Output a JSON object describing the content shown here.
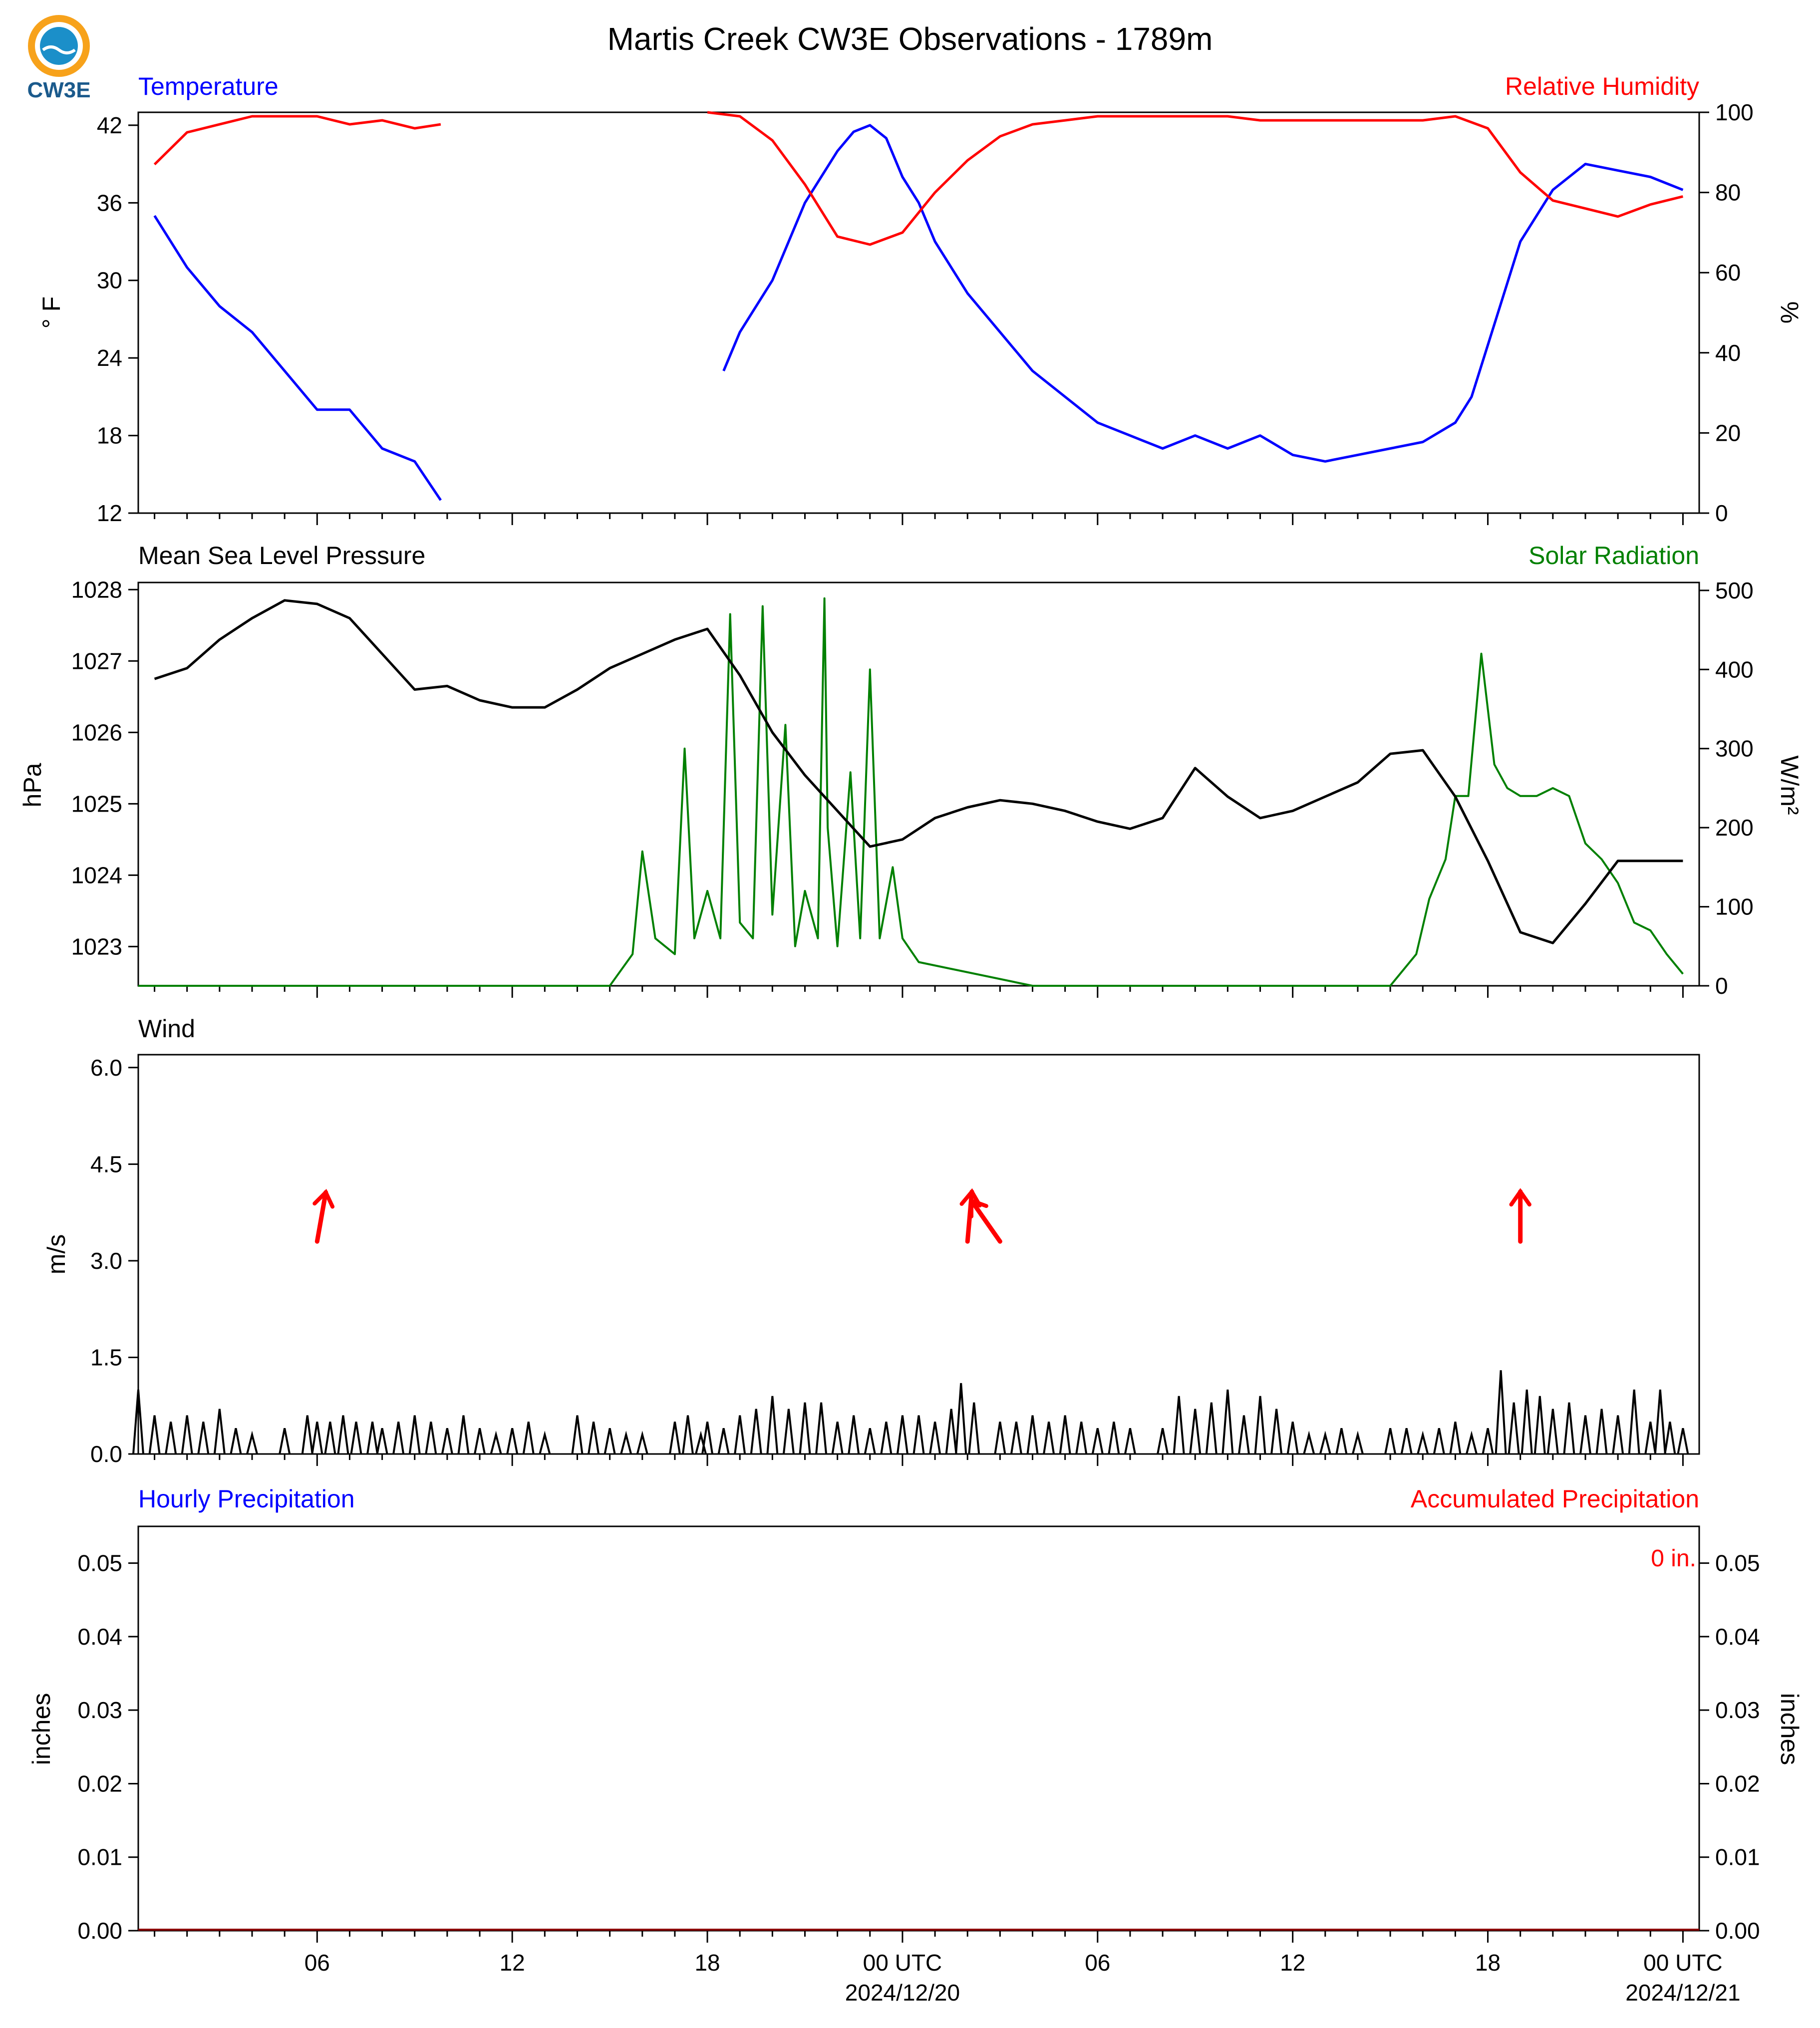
{
  "title": "Martis Creek CW3E Observations - 1789m",
  "logo": {
    "text": "CW3E",
    "colors": {
      "orange": "#F7A21B",
      "blue": "#1B8FC9",
      "navy": "#1B5A8C"
    }
  },
  "x_axis": {
    "range_hours": [
      -47.5,
      0.5
    ],
    "ticks": [
      {
        "hour": -42,
        "label": "06"
      },
      {
        "hour": -36,
        "label": "12"
      },
      {
        "hour": -30,
        "label": "18"
      },
      {
        "hour": -24,
        "label": "00 UTC",
        "sublabel": "2024/12/20"
      },
      {
        "hour": -18,
        "label": "06"
      },
      {
        "hour": -12,
        "label": "12"
      },
      {
        "hour": -6,
        "label": "18"
      },
      {
        "hour": 0,
        "label": "00 UTC",
        "sublabel": "2024/12/21"
      }
    ]
  },
  "panels": {
    "temp": {
      "title_left": "Temperature",
      "title_right": "Relative Humidity",
      "ylabel_left": "° F",
      "ylabel_right": "%",
      "yticks_left": [
        "12",
        "18",
        "24",
        "30",
        "36",
        "42"
      ],
      "yticks_right": [
        "0",
        "20",
        "40",
        "60",
        "80",
        "100"
      ]
    },
    "pressure": {
      "title_left": "Mean Sea Level Pressure",
      "title_right": "Solar Radiation",
      "ylabel_left": "hPa",
      "ylabel_right": "W/m²",
      "yticks_left": [
        "1023",
        "1024",
        "1025",
        "1026",
        "1027",
        "1028"
      ],
      "yticks_right": [
        "0",
        "100",
        "200",
        "300",
        "400",
        "500"
      ]
    },
    "wind": {
      "title_left": "Wind",
      "ylabel_left": "m/s",
      "yticks_left": [
        "0.0",
        "1.5",
        "3.0",
        "4.5",
        "6.0"
      ]
    },
    "precip": {
      "title_left": "Hourly Precipitation",
      "title_right": "Accumulated Precipitation",
      "ylabel_left": "inches",
      "ylabel_right": "inches",
      "yticks_left": [
        "0.00",
        "0.01",
        "0.02",
        "0.03",
        "0.04",
        "0.05"
      ],
      "yticks_right": [
        "0.00",
        "0.01",
        "0.02",
        "0.03",
        "0.04",
        "0.05"
      ],
      "accum_label": "0 in."
    }
  },
  "colors": {
    "temperature": "#0000FF",
    "humidity": "#FF0000",
    "pressure": "#000000",
    "solar": "#008000",
    "wind": "#000000",
    "wind_arrows": "#FF0000"
  },
  "chart_data": [
    {
      "type": "line",
      "name": "temperature",
      "x_unit": "hours relative to 2024/12/21 00 UTC",
      "y_unit": "°F",
      "ylim": [
        12,
        43
      ],
      "series": [
        {
          "name": "Temperature",
          "segments": [
            {
              "x": [
                -47,
                -46,
                -45,
                -44,
                -43,
                -42,
                -41,
                -40,
                -39,
                -38.2
              ],
              "y": [
                35,
                31,
                28,
                26,
                23,
                20,
                20,
                17,
                16,
                13
              ]
            },
            {
              "x": [
                -29.5,
                -29,
                -28,
                -27,
                -26,
                -25.5,
                -25,
                -24.5,
                -24,
                -23.5,
                -23,
                -22,
                -21,
                -20,
                -19,
                -18,
                -17,
                -16,
                -15,
                -14,
                -13,
                -12,
                -11,
                -10,
                -9,
                -8,
                -7,
                -6.5,
                -6,
                -5,
                -4,
                -3,
                -2,
                -1,
                -0.5,
                0
              ],
              "y": [
                23,
                26,
                30,
                36,
                40,
                41.5,
                42,
                41,
                38,
                36,
                33,
                29,
                26,
                23,
                21,
                19,
                18,
                17,
                18,
                17,
                18,
                16.5,
                16,
                16.5,
                17,
                17.5,
                19,
                21,
                25,
                33,
                37,
                39,
                38.5,
                38,
                37.5,
                37
              ]
            }
          ]
        }
      ]
    },
    {
      "type": "line",
      "name": "relative_humidity",
      "x_unit": "hours relative to 2024/12/21 00 UTC",
      "y_unit": "%",
      "ylim": [
        0,
        100
      ],
      "series": [
        {
          "name": "Relative Humidity",
          "segments": [
            {
              "x": [
                -47,
                -46,
                -45,
                -44,
                -43,
                -42,
                -41,
                -40,
                -39,
                -38.2
              ],
              "y": [
                87,
                95,
                97,
                99,
                99,
                99,
                97,
                98,
                96,
                97
              ]
            },
            {
              "x": [
                -30,
                -29,
                -28,
                -27,
                -26,
                -25,
                -24,
                -23,
                -22,
                -21,
                -20,
                -19,
                -18,
                -17,
                -16,
                -15,
                -14,
                -13,
                -12,
                -11,
                -10,
                -9,
                -8,
                -7,
                -6,
                -5,
                -4,
                -3,
                -2,
                -1,
                0
              ],
              "y": [
                100,
                99,
                93,
                82,
                69,
                67,
                70,
                80,
                88,
                94,
                97,
                98,
                99,
                99,
                99,
                99,
                99,
                98,
                98,
                98,
                98,
                98,
                98,
                99,
                96,
                85,
                78,
                76,
                74,
                77,
                79
              ]
            }
          ]
        }
      ]
    },
    {
      "type": "line",
      "name": "mean_sea_level_pressure",
      "x_unit": "hours relative to 2024/12/21 00 UTC",
      "y_unit": "hPa",
      "ylim": [
        1022.45,
        1028.1
      ],
      "series": [
        {
          "name": "Mean Sea Level Pressure",
          "x": [
            -47,
            -46,
            -45,
            -44,
            -43,
            -42,
            -41,
            -40,
            -39,
            -38,
            -37,
            -36,
            -35,
            -34,
            -33,
            -32,
            -31,
            -30,
            -29,
            -28,
            -27,
            -26,
            -25,
            -24,
            -23,
            -22,
            -21,
            -20,
            -19,
            -18,
            -17,
            -16,
            -15,
            -14,
            -13,
            -12,
            -11,
            -10,
            -9,
            -8,
            -7,
            -6,
            -5,
            -4,
            -3,
            -2,
            -1,
            0
          ],
          "y": [
            1026.75,
            1026.9,
            1027.3,
            1027.6,
            1027.85,
            1027.8,
            1027.6,
            1027.1,
            1026.6,
            1026.65,
            1026.45,
            1026.35,
            1026.35,
            1026.6,
            1026.9,
            1027.1,
            1027.3,
            1027.45,
            1026.8,
            1026,
            1025.4,
            1024.9,
            1024.4,
            1024.5,
            1024.8,
            1024.95,
            1025.05,
            1025,
            1024.9,
            1024.75,
            1024.65,
            1024.8,
            1025.5,
            1025.1,
            1024.8,
            1024.9,
            1025.1,
            1025.3,
            1025.7,
            1025.75,
            1025.1,
            1024.2,
            1023.2,
            1023.05,
            1023.6,
            1024.2,
            1024.2,
            1024.2
          ]
        }
      ]
    },
    {
      "type": "line",
      "name": "solar_radiation",
      "x_unit": "hours relative to 2024/12/21 00 UTC",
      "y_unit": "W/m²",
      "ylim": [
        0,
        510
      ],
      "series": [
        {
          "name": "Solar Radiation",
          "x": [
            -47.5,
            -33,
            -32.3,
            -32,
            -31.6,
            -31.3,
            -31,
            -30.7,
            -30.4,
            -30,
            -29.6,
            -29.3,
            -29,
            -28.6,
            -28.3,
            -28,
            -27.6,
            -27.3,
            -27,
            -26.6,
            -26.4,
            -26.3,
            -26,
            -25.6,
            -25.3,
            -25,
            -24.7,
            -24.3,
            -24,
            -23.5,
            -20,
            -9,
            -8.2,
            -7.8,
            -7.3,
            -7,
            -6.6,
            -6.2,
            -5.8,
            -5.4,
            -5,
            -4.5,
            -4,
            -3.5,
            -3,
            -2.5,
            -2,
            -1.5,
            -1,
            -0.5,
            0
          ],
          "y": [
            0,
            0,
            40,
            170,
            60,
            50,
            40,
            300,
            60,
            120,
            60,
            470,
            80,
            60,
            480,
            90,
            330,
            50,
            120,
            60,
            490,
            200,
            50,
            270,
            60,
            400,
            60,
            150,
            60,
            30,
            0,
            0,
            40,
            110,
            160,
            240,
            240,
            420,
            280,
            250,
            240,
            240,
            250,
            240,
            180,
            160,
            130,
            80,
            70,
            40,
            15
          ]
        }
      ]
    },
    {
      "type": "bar",
      "name": "wind_speed",
      "x_unit": "hours relative to 2024/12/21 00 UTC",
      "y_unit": "m/s",
      "ylim": [
        0,
        6.2
      ],
      "bars": [
        {
          "x": -47.5,
          "y": 1.0
        },
        {
          "x": -47,
          "y": 0.6
        },
        {
          "x": -46.5,
          "y": 0.5
        },
        {
          "x": -46,
          "y": 0.6
        },
        {
          "x": -45.5,
          "y": 0.5
        },
        {
          "x": -45,
          "y": 0.7
        },
        {
          "x": -44.5,
          "y": 0.4
        },
        {
          "x": -44,
          "y": 0.3
        },
        {
          "x": -43,
          "y": 0.4
        },
        {
          "x": -42.3,
          "y": 0.6
        },
        {
          "x": -42,
          "y": 0.5
        },
        {
          "x": -41.6,
          "y": 0.5
        },
        {
          "x": -41.2,
          "y": 0.6
        },
        {
          "x": -40.8,
          "y": 0.5
        },
        {
          "x": -40.3,
          "y": 0.5
        },
        {
          "x": -40,
          "y": 0.4
        },
        {
          "x": -39.5,
          "y": 0.5
        },
        {
          "x": -39,
          "y": 0.6
        },
        {
          "x": -38.5,
          "y": 0.5
        },
        {
          "x": -38,
          "y": 0.4
        },
        {
          "x": -37.5,
          "y": 0.6
        },
        {
          "x": -37,
          "y": 0.4
        },
        {
          "x": -36.5,
          "y": 0.3
        },
        {
          "x": -36,
          "y": 0.4
        },
        {
          "x": -35.5,
          "y": 0.5
        },
        {
          "x": -35,
          "y": 0.3
        },
        {
          "x": -34,
          "y": 0.6
        },
        {
          "x": -33.5,
          "y": 0.5
        },
        {
          "x": -33,
          "y": 0.4
        },
        {
          "x": -32.5,
          "y": 0.3
        },
        {
          "x": -32,
          "y": 0.3
        },
        {
          "x": -31,
          "y": 0.5
        },
        {
          "x": -30.6,
          "y": 0.6
        },
        {
          "x": -30.2,
          "y": 0.3
        },
        {
          "x": -30,
          "y": 0.5
        },
        {
          "x": -29.5,
          "y": 0.4
        },
        {
          "x": -29,
          "y": 0.6
        },
        {
          "x": -28.5,
          "y": 0.7
        },
        {
          "x": -28,
          "y": 0.9
        },
        {
          "x": -27.5,
          "y": 0.7
        },
        {
          "x": -27,
          "y": 0.8
        },
        {
          "x": -26.5,
          "y": 0.8
        },
        {
          "x": -26,
          "y": 0.5
        },
        {
          "x": -25.5,
          "y": 0.6
        },
        {
          "x": -25,
          "y": 0.4
        },
        {
          "x": -24.5,
          "y": 0.5
        },
        {
          "x": -24,
          "y": 0.6
        },
        {
          "x": -23.5,
          "y": 0.6
        },
        {
          "x": -23,
          "y": 0.5
        },
        {
          "x": -22.5,
          "y": 0.7
        },
        {
          "x": -22.2,
          "y": 1.1
        },
        {
          "x": -21.8,
          "y": 0.8
        },
        {
          "x": -21,
          "y": 0.5
        },
        {
          "x": -20.5,
          "y": 0.5
        },
        {
          "x": -20,
          "y": 0.6
        },
        {
          "x": -19.5,
          "y": 0.5
        },
        {
          "x": -19,
          "y": 0.6
        },
        {
          "x": -18.5,
          "y": 0.5
        },
        {
          "x": -18,
          "y": 0.4
        },
        {
          "x": -17.5,
          "y": 0.5
        },
        {
          "x": -17,
          "y": 0.4
        },
        {
          "x": -16,
          "y": 0.4
        },
        {
          "x": -15.5,
          "y": 0.9
        },
        {
          "x": -15,
          "y": 0.7
        },
        {
          "x": -14.5,
          "y": 0.8
        },
        {
          "x": -14,
          "y": 1.0
        },
        {
          "x": -13.5,
          "y": 0.6
        },
        {
          "x": -13,
          "y": 0.9
        },
        {
          "x": -12.5,
          "y": 0.7
        },
        {
          "x": -12,
          "y": 0.5
        },
        {
          "x": -11.5,
          "y": 0.3
        },
        {
          "x": -11,
          "y": 0.3
        },
        {
          "x": -10.5,
          "y": 0.4
        },
        {
          "x": -10,
          "y": 0.3
        },
        {
          "x": -9,
          "y": 0.4
        },
        {
          "x": -8.5,
          "y": 0.4
        },
        {
          "x": -8,
          "y": 0.3
        },
        {
          "x": -7.5,
          "y": 0.4
        },
        {
          "x": -7,
          "y": 0.5
        },
        {
          "x": -6.5,
          "y": 0.3
        },
        {
          "x": -6,
          "y": 0.4
        },
        {
          "x": -5.6,
          "y": 1.3
        },
        {
          "x": -5.2,
          "y": 0.8
        },
        {
          "x": -4.8,
          "y": 1.0
        },
        {
          "x": -4.4,
          "y": 0.9
        },
        {
          "x": -4,
          "y": 0.7
        },
        {
          "x": -3.5,
          "y": 0.8
        },
        {
          "x": -3,
          "y": 0.6
        },
        {
          "x": -2.5,
          "y": 0.7
        },
        {
          "x": -2,
          "y": 0.6
        },
        {
          "x": -1.5,
          "y": 1.0
        },
        {
          "x": -1,
          "y": 0.5
        },
        {
          "x": -0.7,
          "y": 1.0
        },
        {
          "x": -0.4,
          "y": 0.5
        },
        {
          "x": 0,
          "y": 0.4
        }
      ],
      "arrows": [
        {
          "x": -42,
          "y": 3.3,
          "from_dir_deg": 190
        },
        {
          "x": -22,
          "y": 3.3,
          "from_dir_deg": 185
        },
        {
          "x": -21,
          "y": 3.3,
          "from_dir_deg": 145
        },
        {
          "x": -5,
          "y": 3.3,
          "from_dir_deg": 180
        }
      ]
    },
    {
      "type": "bar",
      "name": "precipitation",
      "x_unit": "hours relative to 2024/12/21 00 UTC",
      "y_unit": "inches",
      "ylim": [
        0,
        0.055
      ],
      "hourly_values": [],
      "accumulated_total": 0
    }
  ]
}
